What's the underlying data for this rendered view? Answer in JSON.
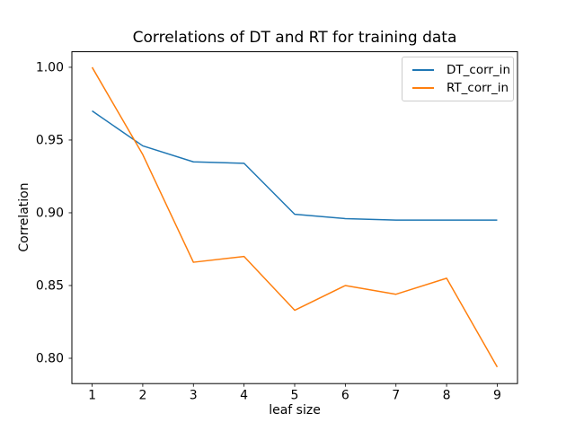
{
  "figure": {
    "background": "#ffffff",
    "axis_color": "#000000",
    "text_color": "#000000"
  },
  "chart_data": {
    "type": "line",
    "title": "Correlations of DT and RT for training data",
    "xlabel": "leaf size",
    "ylabel": "Correlation",
    "x": [
      1,
      2,
      3,
      4,
      5,
      6,
      7,
      8,
      9
    ],
    "series": [
      {
        "name": "DT_corr_in",
        "color": "#1f77b4",
        "values": [
          0.97,
          0.946,
          0.935,
          0.934,
          0.899,
          0.896,
          0.895,
          0.895,
          0.895
        ]
      },
      {
        "name": "RT_corr_in",
        "color": "#ff7f0e",
        "values": [
          1.0,
          0.94,
          0.866,
          0.87,
          0.833,
          0.85,
          0.844,
          0.855,
          0.794
        ]
      }
    ],
    "xlim": [
      0.6,
      9.4
    ],
    "ylim": [
      0.7826,
      1.0107
    ],
    "xticks": {
      "values": [
        1,
        2,
        3,
        4,
        5,
        6,
        7,
        8,
        9
      ],
      "labels": [
        "1",
        "2",
        "3",
        "4",
        "5",
        "6",
        "7",
        "8",
        "9"
      ]
    },
    "yticks": {
      "values": [
        0.8,
        0.85,
        0.9,
        0.95,
        1.0
      ],
      "labels": [
        "0.80",
        "0.85",
        "0.90",
        "0.95",
        "1.00"
      ]
    },
    "legend": {
      "position": "upper right"
    },
    "grid": false,
    "line_width": 1.5
  }
}
